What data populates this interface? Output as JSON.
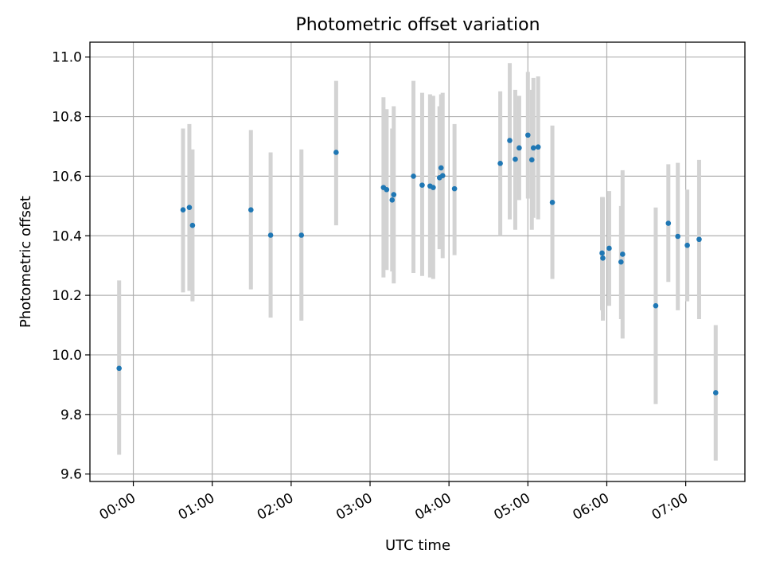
{
  "chart_data": {
    "type": "scatter",
    "title": "Photometric offset variation",
    "xlabel": "UTC time",
    "ylabel": "Photometric offset",
    "x_unit": "hours (UTC)",
    "xlim": [
      -0.55,
      7.75
    ],
    "ylim": [
      9.575,
      11.05
    ],
    "grid": true,
    "x_ticks": [
      {
        "value": 0,
        "label": "00:00"
      },
      {
        "value": 1,
        "label": "01:00"
      },
      {
        "value": 2,
        "label": "02:00"
      },
      {
        "value": 3,
        "label": "03:00"
      },
      {
        "value": 4,
        "label": "04:00"
      },
      {
        "value": 5,
        "label": "05:00"
      },
      {
        "value": 6,
        "label": "06:00"
      },
      {
        "value": 7,
        "label": "07:00"
      }
    ],
    "y_ticks": [
      {
        "value": 9.6,
        "label": "9.6"
      },
      {
        "value": 9.8,
        "label": "9.8"
      },
      {
        "value": 10.0,
        "label": "10.0"
      },
      {
        "value": 10.2,
        "label": "10.2"
      },
      {
        "value": 10.4,
        "label": "10.4"
      },
      {
        "value": 10.6,
        "label": "10.6"
      },
      {
        "value": 10.8,
        "label": "10.8"
      },
      {
        "value": 11.0,
        "label": "11.0"
      }
    ],
    "colors": {
      "point": "#1f77b4",
      "errorbar": "#d3d3d3",
      "grid": "#b0b0b0"
    },
    "series": [
      {
        "points": [
          {
            "x": -0.18,
            "y": 9.955,
            "lo": 9.665,
            "hi": 10.25
          },
          {
            "x": 0.63,
            "y": 10.487,
            "lo": 10.21,
            "hi": 10.76
          },
          {
            "x": 0.71,
            "y": 10.495,
            "lo": 10.215,
            "hi": 10.775
          },
          {
            "x": 0.75,
            "y": 10.435,
            "lo": 10.18,
            "hi": 10.69
          },
          {
            "x": 1.49,
            "y": 10.487,
            "lo": 10.22,
            "hi": 10.755
          },
          {
            "x": 1.74,
            "y": 10.402,
            "lo": 10.125,
            "hi": 10.68
          },
          {
            "x": 2.13,
            "y": 10.402,
            "lo": 10.115,
            "hi": 10.69
          },
          {
            "x": 2.57,
            "y": 10.68,
            "lo": 10.435,
            "hi": 10.92
          },
          {
            "x": 3.17,
            "y": 10.562,
            "lo": 10.26,
            "hi": 10.865
          },
          {
            "x": 3.21,
            "y": 10.555,
            "lo": 10.285,
            "hi": 10.825
          },
          {
            "x": 3.28,
            "y": 10.52,
            "lo": 10.28,
            "hi": 10.76
          },
          {
            "x": 3.3,
            "y": 10.538,
            "lo": 10.24,
            "hi": 10.835
          },
          {
            "x": 3.55,
            "y": 10.6,
            "lo": 10.275,
            "hi": 10.92
          },
          {
            "x": 3.66,
            "y": 10.57,
            "lo": 10.265,
            "hi": 10.88
          },
          {
            "x": 3.76,
            "y": 10.567,
            "lo": 10.26,
            "hi": 10.875
          },
          {
            "x": 3.8,
            "y": 10.562,
            "lo": 10.255,
            "hi": 10.87
          },
          {
            "x": 3.88,
            "y": 10.595,
            "lo": 10.355,
            "hi": 10.835
          },
          {
            "x": 3.9,
            "y": 10.628,
            "lo": 10.375,
            "hi": 10.875
          },
          {
            "x": 3.92,
            "y": 10.602,
            "lo": 10.325,
            "hi": 10.88
          },
          {
            "x": 4.07,
            "y": 10.558,
            "lo": 10.335,
            "hi": 10.775
          },
          {
            "x": 4.65,
            "y": 10.643,
            "lo": 10.4,
            "hi": 10.885
          },
          {
            "x": 4.77,
            "y": 10.72,
            "lo": 10.455,
            "hi": 10.98
          },
          {
            "x": 4.84,
            "y": 10.657,
            "lo": 10.42,
            "hi": 10.89
          },
          {
            "x": 4.89,
            "y": 10.695,
            "lo": 10.52,
            "hi": 10.87
          },
          {
            "x": 5.0,
            "y": 10.738,
            "lo": 10.525,
            "hi": 10.95
          },
          {
            "x": 5.05,
            "y": 10.655,
            "lo": 10.42,
            "hi": 10.89
          },
          {
            "x": 5.07,
            "y": 10.695,
            "lo": 10.46,
            "hi": 10.93
          },
          {
            "x": 5.13,
            "y": 10.698,
            "lo": 10.455,
            "hi": 10.935
          },
          {
            "x": 5.31,
            "y": 10.512,
            "lo": 10.255,
            "hi": 10.77
          },
          {
            "x": 5.94,
            "y": 10.342,
            "lo": 10.15,
            "hi": 10.53
          },
          {
            "x": 5.95,
            "y": 10.325,
            "lo": 10.115,
            "hi": 10.53
          },
          {
            "x": 6.03,
            "y": 10.358,
            "lo": 10.165,
            "hi": 10.55
          },
          {
            "x": 6.18,
            "y": 10.312,
            "lo": 10.12,
            "hi": 10.5
          },
          {
            "x": 6.2,
            "y": 10.338,
            "lo": 10.055,
            "hi": 10.62
          },
          {
            "x": 6.62,
            "y": 10.165,
            "lo": 9.835,
            "hi": 10.495
          },
          {
            "x": 6.78,
            "y": 10.442,
            "lo": 10.245,
            "hi": 10.64
          },
          {
            "x": 6.9,
            "y": 10.398,
            "lo": 10.15,
            "hi": 10.645
          },
          {
            "x": 7.02,
            "y": 10.368,
            "lo": 10.18,
            "hi": 10.555
          },
          {
            "x": 7.17,
            "y": 10.388,
            "lo": 10.12,
            "hi": 10.655
          },
          {
            "x": 7.38,
            "y": 9.873,
            "lo": 9.645,
            "hi": 10.1
          }
        ]
      }
    ]
  }
}
